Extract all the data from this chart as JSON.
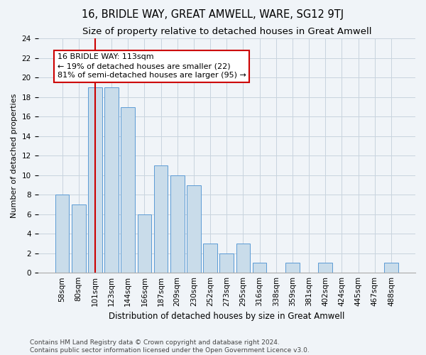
{
  "title": "16, BRIDLE WAY, GREAT AMWELL, WARE, SG12 9TJ",
  "subtitle": "Size of property relative to detached houses in Great Amwell",
  "xlabel": "Distribution of detached houses by size in Great Amwell",
  "ylabel": "Number of detached properties",
  "categories": [
    "58sqm",
    "80sqm",
    "101sqm",
    "123sqm",
    "144sqm",
    "166sqm",
    "187sqm",
    "209sqm",
    "230sqm",
    "252sqm",
    "273sqm",
    "295sqm",
    "316sqm",
    "338sqm",
    "359sqm",
    "381sqm",
    "402sqm",
    "424sqm",
    "445sqm",
    "467sqm",
    "488sqm"
  ],
  "values": [
    8,
    7,
    19,
    19,
    17,
    6,
    11,
    10,
    9,
    3,
    2,
    3,
    1,
    0,
    1,
    0,
    1,
    0,
    0,
    0,
    1
  ],
  "bar_color": "#c9dcea",
  "bar_edge_color": "#5b9bd5",
  "vline_x_idx": 2,
  "vline_color": "#cc0000",
  "annotation_line1": "16 BRIDLE WAY: 113sqm",
  "annotation_line2": "← 19% of detached houses are smaller (22)",
  "annotation_line3": "81% of semi-detached houses are larger (95) →",
  "annotation_box_color": "white",
  "annotation_box_edge": "#cc0000",
  "ylim": [
    0,
    24
  ],
  "yticks": [
    0,
    2,
    4,
    6,
    8,
    10,
    12,
    14,
    16,
    18,
    20,
    22,
    24
  ],
  "footer": "Contains HM Land Registry data © Crown copyright and database right 2024.\nContains public sector information licensed under the Open Government Licence v3.0.",
  "bg_color": "#f0f4f8",
  "plot_bg_color": "#f0f4f8",
  "grid_color": "#c8d4de",
  "title_fontsize": 10.5,
  "subtitle_fontsize": 9.5,
  "xlabel_fontsize": 8.5,
  "ylabel_fontsize": 8,
  "tick_fontsize": 7.5,
  "annot_fontsize": 8,
  "footer_fontsize": 6.5
}
